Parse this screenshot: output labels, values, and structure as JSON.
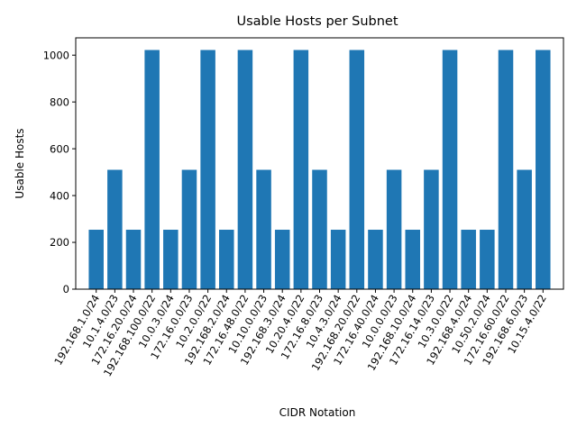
{
  "chart_data": {
    "type": "bar",
    "title": "Usable Hosts per Subnet",
    "xlabel": "CIDR Notation",
    "ylabel": "Usable Hosts",
    "ylim": [
      0,
      1074
    ],
    "yticks": [
      0,
      200,
      400,
      600,
      800,
      1000
    ],
    "grid": false,
    "bar_color": "#1f77b4",
    "categories": [
      "192.168.1.0/24",
      "10.1.4.0/23",
      "172.16.20.0/24",
      "192.168.100.0/22",
      "10.0.3.0/24",
      "172.16.0.0/23",
      "10.2.0.0/22",
      "192.168.2.0/24",
      "172.16.48.0/22",
      "10.10.0.0/23",
      "192.168.3.0/24",
      "10.20.4.0/22",
      "172.16.8.0/23",
      "10.4.3.0/24",
      "192.168.20.0/22",
      "172.16.40.0/24",
      "10.0.0.0/23",
      "192.168.10.0/24",
      "172.16.14.0/23",
      "10.3.0.0/22",
      "192.168.4.0/24",
      "10.50.2.0/24",
      "172.16.60.0/22",
      "192.168.6.0/23",
      "10.15.4.0/22"
    ],
    "values": [
      254,
      510,
      254,
      1022,
      254,
      510,
      1022,
      254,
      1022,
      510,
      254,
      1022,
      510,
      254,
      1022,
      254,
      510,
      254,
      510,
      1022,
      254,
      254,
      1022,
      510,
      1022
    ]
  }
}
